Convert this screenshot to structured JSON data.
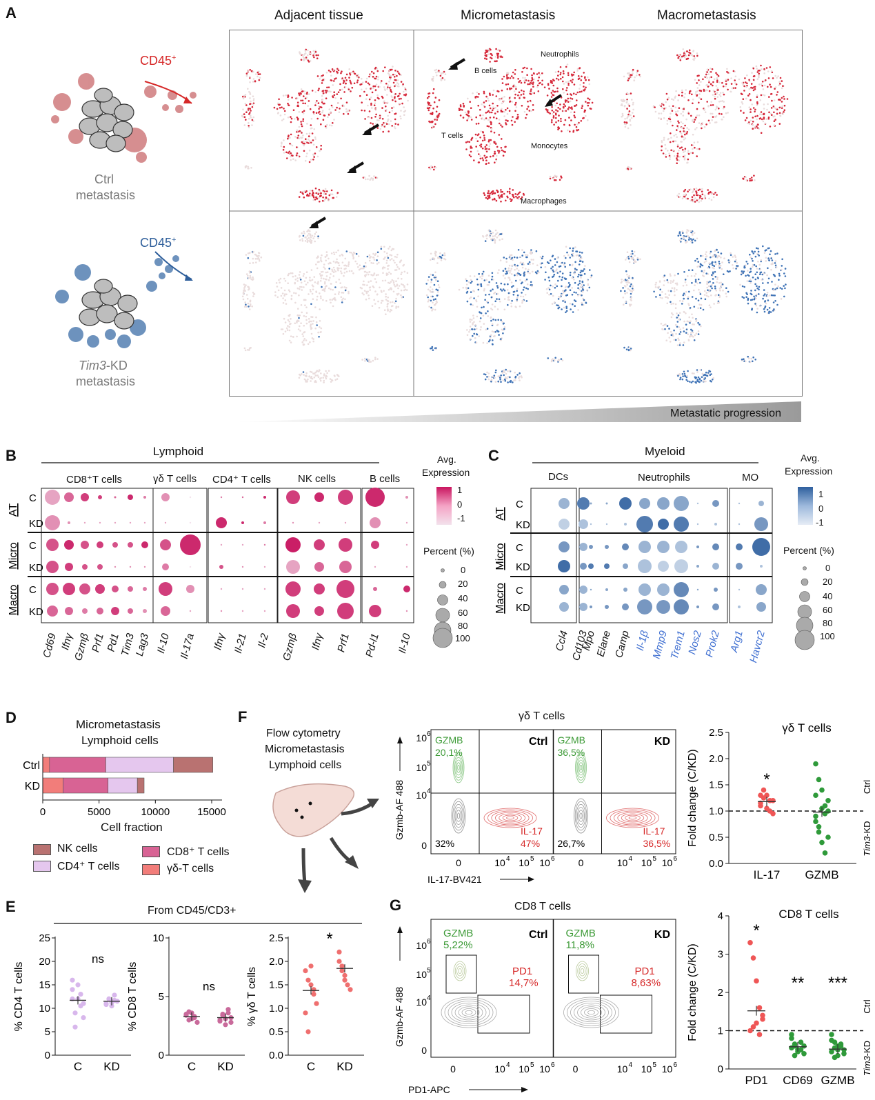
{
  "panelA": {
    "label": "A",
    "columns": [
      "Adjacent tissue",
      "Micrometastasis",
      "Macrometastasis"
    ],
    "ctrl": {
      "marker": "CD45",
      "sup": "+",
      "line1": "Ctrl",
      "line2": "metastasis"
    },
    "kd": {
      "marker": "CD45",
      "sup": "+",
      "line1_it": "Tim3",
      "line1_rest": "-KD",
      "line2": "metastasis"
    },
    "clusters": {
      "b": "B cells",
      "neut": "Neutrophils",
      "t": "T cells",
      "mono": "Monocytes",
      "macro": "Macrophages"
    },
    "progression": "Metastatic progression",
    "colors": {
      "ctrl": "#d6283a",
      "kd": "#3f73b6",
      "base": "#e9dcdc"
    }
  },
  "panelB": {
    "label": "B",
    "title": "Lymphoid",
    "groups": [
      "CD8⁺T cells",
      "γδ T cells",
      "CD4⁺ T cells",
      "NK cells",
      "B cells"
    ],
    "genes": [
      "Cd69",
      "Ifnγ",
      "Gzmβ",
      "Prf1",
      "Pd1",
      "Tim3",
      "Lag3",
      "Il-10",
      "Il-17a",
      "Ifnγ",
      "Il-21",
      "Il-2",
      "Gzmβ",
      "Ifnγ",
      "Prf1",
      "Pd-l1",
      "Il-10"
    ],
    "rows": [
      "C",
      "KD",
      "C",
      "KD",
      "C",
      "KD"
    ],
    "blocks": [
      "AT",
      "Micro",
      "Macro"
    ],
    "legend": {
      "avg1": "Avg.",
      "avg2": "Expression",
      "max": "1",
      "mid": "0",
      "min": "-1",
      "pct": "Percent (%)",
      "sizes": [
        "0",
        "20",
        "40",
        "60",
        "80",
        "100"
      ]
    }
  },
  "panelC": {
    "label": "C",
    "title": "Myeloid",
    "groups": [
      "DCs",
      "Neutrophils",
      "MO"
    ],
    "genes": [
      "Ccl4",
      "Cd103",
      "Mpo",
      "Elane",
      "Camp",
      "Il-1β",
      "Mmp9",
      "Trem1",
      "Nos2",
      "Prok2",
      "Arg1",
      "Havcr2"
    ],
    "rows": [
      "C",
      "KD",
      "C",
      "KD",
      "C",
      "KD"
    ],
    "blocks": [
      "AT",
      "Micro",
      "Macro"
    ],
    "legend": {
      "avg1": "Avg.",
      "avg2": "Expression",
      "max": "1",
      "mid": "0",
      "min": "-1",
      "pct": "Percent (%)",
      "sizes": [
        "0",
        "20",
        "40",
        "60",
        "80",
        "100"
      ]
    }
  },
  "panelD": {
    "label": "D",
    "title1": "Micrometastasis",
    "title2": "Lymphoid cells",
    "xlabel": "Cell fraction",
    "ticks": [
      "0",
      "5000",
      "10000",
      "15000"
    ],
    "legend": [
      "NK cells",
      "CD8⁺ T cells",
      "CD4⁺ T cells",
      "γδ-T cells"
    ]
  },
  "panelE": {
    "label": "E",
    "title": "From CD45/CD3+",
    "plots": [
      {
        "ylabel": "% CD4 T cells",
        "ticks": [
          "0",
          "5",
          "10",
          "15",
          "20",
          "25"
        ],
        "sig": "ns"
      },
      {
        "ylabel": "% CD8 T cells",
        "ticks": [
          "0",
          "5",
          "10"
        ],
        "sig": "ns"
      },
      {
        "ylabel": "% γδ T cells",
        "ticks": [
          "0.0",
          "0.5",
          "1.0",
          "1.5",
          "2.0",
          "2.5"
        ],
        "sig": "*"
      }
    ],
    "xcats": [
      "C",
      "KD"
    ]
  },
  "panelF": {
    "label": "F",
    "flow1": "Flow cytometry",
    "flow2": "Micrometastasis",
    "flow3": "Lymphoid cells",
    "title": "γδ  T cells",
    "ctrl": "Ctrl",
    "kd": "KD",
    "gzmb": "GZMB",
    "il17": "IL-17",
    "q_ctrl": {
      "gzmb": "20,1%",
      "neg": "32%",
      "il17": "47%"
    },
    "q_kd": {
      "gzmb": "36,5%",
      "neg": "26,7%",
      "il17": "36,5%"
    },
    "yaxis": "Gzmb-AF 488",
    "xaxis": "IL-17-BV421",
    "fc_title": "γδ  T cells",
    "fc_ylabel": "Fold change (C/KD)",
    "fc_ticks": [
      "0.0",
      "0.5",
      "1.0",
      "1.5",
      "2.0",
      "2.5"
    ],
    "fc_cats": [
      "IL-17",
      "GZMB"
    ],
    "fc_sig": "*",
    "side_ctrl": "Ctrl",
    "side_kd_it": "Tim3",
    "side_kd": "-KD"
  },
  "panelG": {
    "label": "G",
    "title": "CD8 T cells",
    "ctrl": "Ctrl",
    "kd": "KD",
    "gzmb": "GZMB",
    "pd1": "PD1",
    "q_ctrl": {
      "gzmb": "5,22%",
      "pd1": "14,7%"
    },
    "q_kd": {
      "gzmb": "11,8%",
      "pd1": "8,63%"
    },
    "yaxis": "Gzmb-AF 488",
    "xaxis": "PD1-APC",
    "fc_title": "CD8 T cells",
    "fc_ylabel": "Fold change (C/KD)",
    "fc_ticks": [
      "0",
      "1",
      "2",
      "3",
      "4"
    ],
    "fc_cats": [
      "PD1",
      "CD69",
      "GZMB"
    ],
    "fc_sig": [
      "*",
      "**",
      "***"
    ],
    "side_ctrl": "Ctrl",
    "side_kd_it": "Tim3",
    "side_kd": "-KD"
  }
}
